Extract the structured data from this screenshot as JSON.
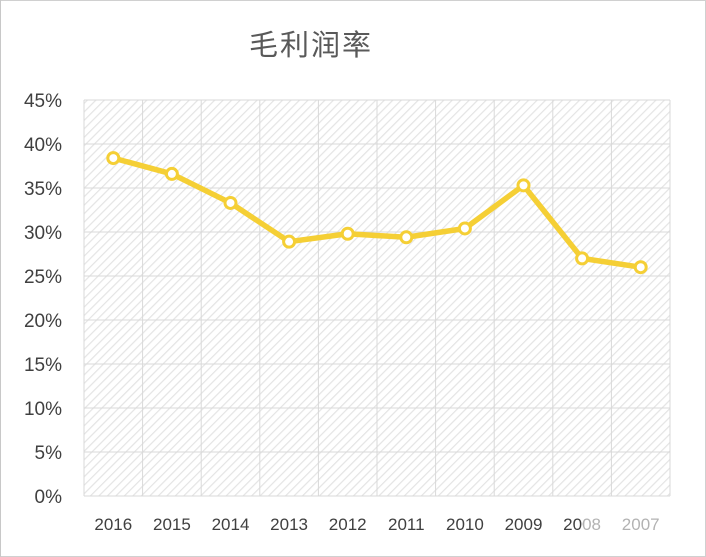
{
  "chart_data": {
    "type": "line",
    "title": "毛利润率",
    "categories": [
      "2016",
      "2015",
      "2014",
      "2013",
      "2012",
      "2011",
      "2010",
      "2009",
      "2008",
      "2007"
    ],
    "series": [
      {
        "values": [
          0.384,
          0.366,
          0.333,
          0.289,
          0.298,
          0.294,
          0.304,
          0.353,
          0.27,
          0.26
        ]
      }
    ],
    "y_ticks": [
      "0%",
      "5%",
      "10%",
      "15%",
      "20%",
      "25%",
      "30%",
      "35%",
      "40%",
      "45%"
    ],
    "ylim": [
      0,
      0.45
    ],
    "grid": true,
    "legend": "none",
    "colors": {
      "line": "#f5cf35",
      "marker_fill": "#ffffff",
      "gridline": "#d9d9d9",
      "axis_text": "#404040"
    }
  }
}
